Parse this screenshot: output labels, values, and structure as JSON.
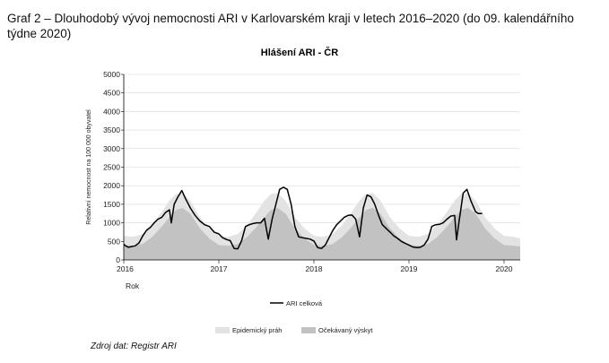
{
  "document": {
    "heading": "Graf 2 – Dlouhodobý vývoj nemocnosti ARI v Karlovarském kraji v letech 2016–2020 (do 09. kalendářního týdne 2020)",
    "source": "Zdroj dat: Registr ARI"
  },
  "chart_data": {
    "type": "area",
    "title": "Hlášení ARI - ČR",
    "ylabel": "Relativní nemocnost na 100 000 obyvatel",
    "xlabel": "Rok",
    "ylim": [
      0,
      5000
    ],
    "yticks": [
      "5000",
      "4500",
      "4000",
      "3500",
      "3000",
      "2500",
      "2000",
      "1500",
      "1000",
      "500",
      "0"
    ],
    "xticks": [
      "2016",
      "2017",
      "2018",
      "2019",
      "2020"
    ],
    "x_range_years": [
      2016.0,
      2020.17
    ],
    "grid": true,
    "legend": [
      "ARI celková",
      "Epidemický práh",
      "Očekávaný výskyt"
    ],
    "colors": {
      "ari_line": "#000000",
      "threshold": "#e3e3e3",
      "expected": "#c2c2c2",
      "grid": "#d8d8d8"
    },
    "series": [
      {
        "name": "Epidemický práh",
        "x": [
          2016.0,
          2016.1,
          2016.2,
          2016.3,
          2016.4,
          2016.48,
          2016.55,
          2016.62,
          2016.7,
          2016.8,
          2016.9,
          2017.0,
          2017.1,
          2017.2,
          2017.3,
          2017.4,
          2017.48,
          2017.55,
          2017.62,
          2017.7,
          2017.8,
          2017.9,
          2018.0,
          2018.1,
          2018.2,
          2018.3,
          2018.4,
          2018.48,
          2018.55,
          2018.62,
          2018.7,
          2018.8,
          2018.9,
          2019.0,
          2019.1,
          2019.2,
          2019.3,
          2019.4,
          2019.48,
          2019.55,
          2019.62,
          2019.7,
          2019.8,
          2019.9,
          2020.0,
          2020.1,
          2020.17
        ],
        "values": [
          650,
          620,
          700,
          950,
          1300,
          1600,
          1780,
          1800,
          1600,
          1150,
          850,
          650,
          620,
          700,
          950,
          1300,
          1600,
          1780,
          1800,
          1600,
          1150,
          850,
          650,
          620,
          700,
          950,
          1300,
          1600,
          1780,
          1800,
          1600,
          1150,
          850,
          650,
          620,
          700,
          950,
          1300,
          1600,
          1780,
          1800,
          1600,
          1150,
          850,
          650,
          620,
          580
        ]
      },
      {
        "name": "Očekávaný výskyt",
        "x": [
          2016.0,
          2016.1,
          2016.2,
          2016.3,
          2016.4,
          2016.48,
          2016.55,
          2016.62,
          2016.7,
          2016.8,
          2016.9,
          2017.0,
          2017.1,
          2017.2,
          2017.3,
          2017.4,
          2017.48,
          2017.55,
          2017.62,
          2017.7,
          2017.8,
          2017.9,
          2018.0,
          2018.1,
          2018.2,
          2018.3,
          2018.4,
          2018.48,
          2018.55,
          2018.62,
          2018.7,
          2018.8,
          2018.9,
          2019.0,
          2019.1,
          2019.2,
          2019.3,
          2019.4,
          2019.48,
          2019.55,
          2019.62,
          2019.7,
          2019.8,
          2019.9,
          2020.0,
          2020.1,
          2020.17
        ],
        "values": [
          400,
          380,
          430,
          620,
          900,
          1150,
          1350,
          1400,
          1250,
          850,
          580,
          400,
          380,
          430,
          620,
          900,
          1150,
          1350,
          1400,
          1250,
          850,
          580,
          400,
          380,
          430,
          620,
          900,
          1150,
          1350,
          1400,
          1250,
          850,
          580,
          400,
          380,
          430,
          620,
          900,
          1150,
          1350,
          1400,
          1250,
          850,
          580,
          400,
          380,
          360
        ]
      },
      {
        "name": "ARI celková",
        "x": [
          2016.0,
          2016.02,
          2016.05,
          2016.08,
          2016.12,
          2016.16,
          2016.2,
          2016.24,
          2016.28,
          2016.32,
          2016.36,
          2016.4,
          2016.44,
          2016.48,
          2016.5,
          2016.53,
          2016.57,
          2016.61,
          2016.65,
          2016.7,
          2016.75,
          2016.8,
          2016.85,
          2016.9,
          2016.95,
          2017.0,
          2017.04,
          2017.08,
          2017.12,
          2017.16,
          2017.2,
          2017.24,
          2017.28,
          2017.32,
          2017.36,
          2017.4,
          2017.44,
          2017.48,
          2017.52,
          2017.56,
          2017.6,
          2017.64,
          2017.68,
          2017.72,
          2017.76,
          2017.8,
          2017.84,
          2017.88,
          2017.92,
          2017.96,
          2018.0,
          2018.04,
          2018.08,
          2018.12,
          2018.16,
          2018.2,
          2018.24,
          2018.28,
          2018.32,
          2018.36,
          2018.4,
          2018.44,
          2018.48,
          2018.52,
          2018.56,
          2018.6,
          2018.64,
          2018.68,
          2018.72,
          2018.76,
          2018.8,
          2018.84,
          2018.88,
          2018.92,
          2018.96,
          2019.0,
          2019.04,
          2019.08,
          2019.12,
          2019.16,
          2019.2,
          2019.24,
          2019.28,
          2019.32,
          2019.36,
          2019.4,
          2019.44,
          2019.48,
          2019.5,
          2019.53,
          2019.57,
          2019.61,
          2019.65,
          2019.7,
          2019.73,
          2019.77
        ],
        "values": [
          420,
          380,
          340,
          360,
          380,
          460,
          650,
          800,
          880,
          1000,
          1100,
          1150,
          1280,
          1350,
          1000,
          1500,
          1700,
          1870,
          1650,
          1400,
          1200,
          1050,
          950,
          900,
          750,
          700,
          600,
          550,
          520,
          310,
          300,
          520,
          900,
          950,
          980,
          1000,
          1000,
          1120,
          560,
          1100,
          1500,
          1900,
          1960,
          1900,
          1500,
          900,
          620,
          600,
          580,
          560,
          510,
          330,
          310,
          400,
          600,
          800,
          950,
          1050,
          1150,
          1200,
          1210,
          1100,
          620,
          1400,
          1750,
          1700,
          1500,
          1200,
          950,
          850,
          750,
          650,
          580,
          500,
          450,
          400,
          350,
          330,
          340,
          400,
          560,
          900,
          950,
          960,
          1000,
          1100,
          1180,
          1200,
          540,
          1100,
          1800,
          1900,
          1600,
          1300,
          1250,
          1250
        ]
      }
    ]
  }
}
